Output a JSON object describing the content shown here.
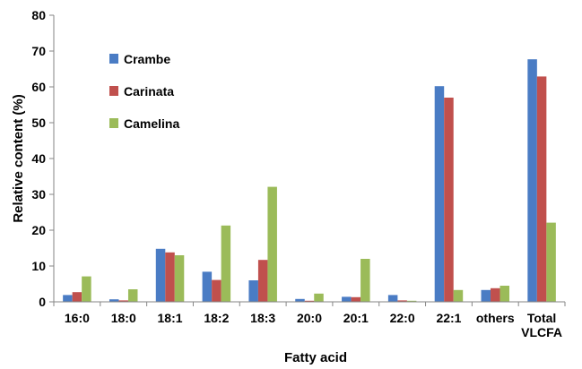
{
  "chart_data": {
    "type": "bar",
    "title": "",
    "xlabel": "Fatty acid",
    "ylabel": "Relative content (%)",
    "ylim": [
      0,
      80
    ],
    "yticks": [
      0,
      10,
      20,
      30,
      40,
      50,
      60,
      70,
      80
    ],
    "grid": false,
    "legend_position": "top-left",
    "categories": [
      "16:0",
      "18:0",
      "18:1",
      "18:2",
      "18:3",
      "20:0",
      "20:1",
      "22:0",
      "22:1",
      "others",
      "Total VLCFA"
    ],
    "category_lines": [
      [
        "16:0"
      ],
      [
        "18:0"
      ],
      [
        "18:1"
      ],
      [
        "18:2"
      ],
      [
        "18:3"
      ],
      [
        "20:0"
      ],
      [
        "20:1"
      ],
      [
        "22:0"
      ],
      [
        "22:1"
      ],
      [
        "others"
      ],
      [
        "Total",
        "VLCFA"
      ]
    ],
    "series": [
      {
        "name": "Crambe",
        "color": "#4a7cc4",
        "values": [
          1.9,
          0.7,
          14.8,
          8.4,
          6.0,
          0.8,
          1.4,
          1.9,
          60.2,
          3.3,
          67.7
        ]
      },
      {
        "name": "Carinata",
        "color": "#c0504d",
        "values": [
          2.7,
          0.4,
          13.8,
          6.1,
          11.7,
          0.3,
          1.3,
          0.4,
          57.0,
          3.8,
          62.9
        ]
      },
      {
        "name": "Camelina",
        "color": "#9bbb59",
        "values": [
          7.1,
          3.5,
          13.0,
          21.3,
          32.1,
          2.3,
          12.0,
          0.3,
          3.3,
          4.5,
          22.1
        ]
      }
    ]
  }
}
